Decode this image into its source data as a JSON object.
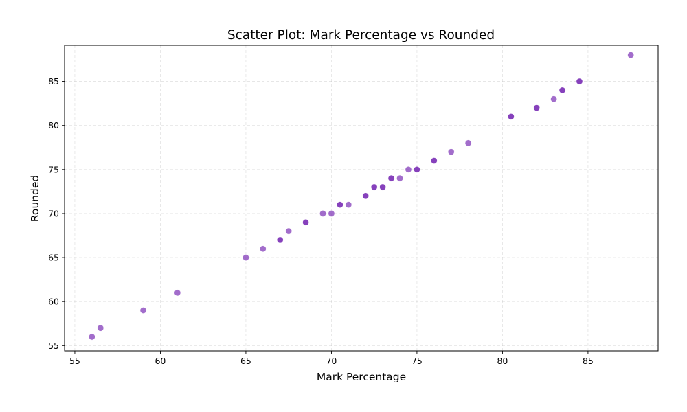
{
  "chart_data": {
    "type": "scatter",
    "title": "Scatter Plot: Mark Percentage vs Rounded",
    "xlabel": "Mark Percentage",
    "ylabel": "Rounded",
    "xlim": [
      54.4,
      89.1
    ],
    "ylim": [
      54.4,
      89.1
    ],
    "xticks": [
      55,
      60,
      65,
      70,
      75,
      80,
      85
    ],
    "yticks": [
      55,
      60,
      65,
      70,
      75,
      80,
      85
    ],
    "grid": true,
    "legend": "none",
    "marker_color": "#7b2fb5",
    "marker_alpha": 0.7,
    "series": [
      {
        "x": [
          56,
          56.5,
          59,
          61,
          65,
          66,
          67,
          67,
          67.5,
          68.5,
          68.5,
          69.5,
          70,
          70.5,
          70.5,
          71,
          72,
          72,
          72.5,
          72.5,
          73,
          73,
          73.5,
          73.5,
          74,
          74.5,
          75,
          75,
          76,
          76,
          77,
          78,
          80.5,
          80.5,
          82,
          82,
          83,
          83.5,
          83.5,
          84.5,
          84.5,
          87.5
        ],
        "y": [
          56,
          57,
          59,
          61,
          65,
          66,
          67,
          67,
          68,
          69,
          69,
          70,
          70,
          71,
          71,
          71,
          72,
          72,
          73,
          73,
          73,
          73,
          74,
          74,
          74,
          75,
          75,
          75,
          76,
          76,
          77,
          78,
          81,
          81,
          82,
          82,
          83,
          84,
          84,
          85,
          85,
          88
        ]
      }
    ]
  }
}
